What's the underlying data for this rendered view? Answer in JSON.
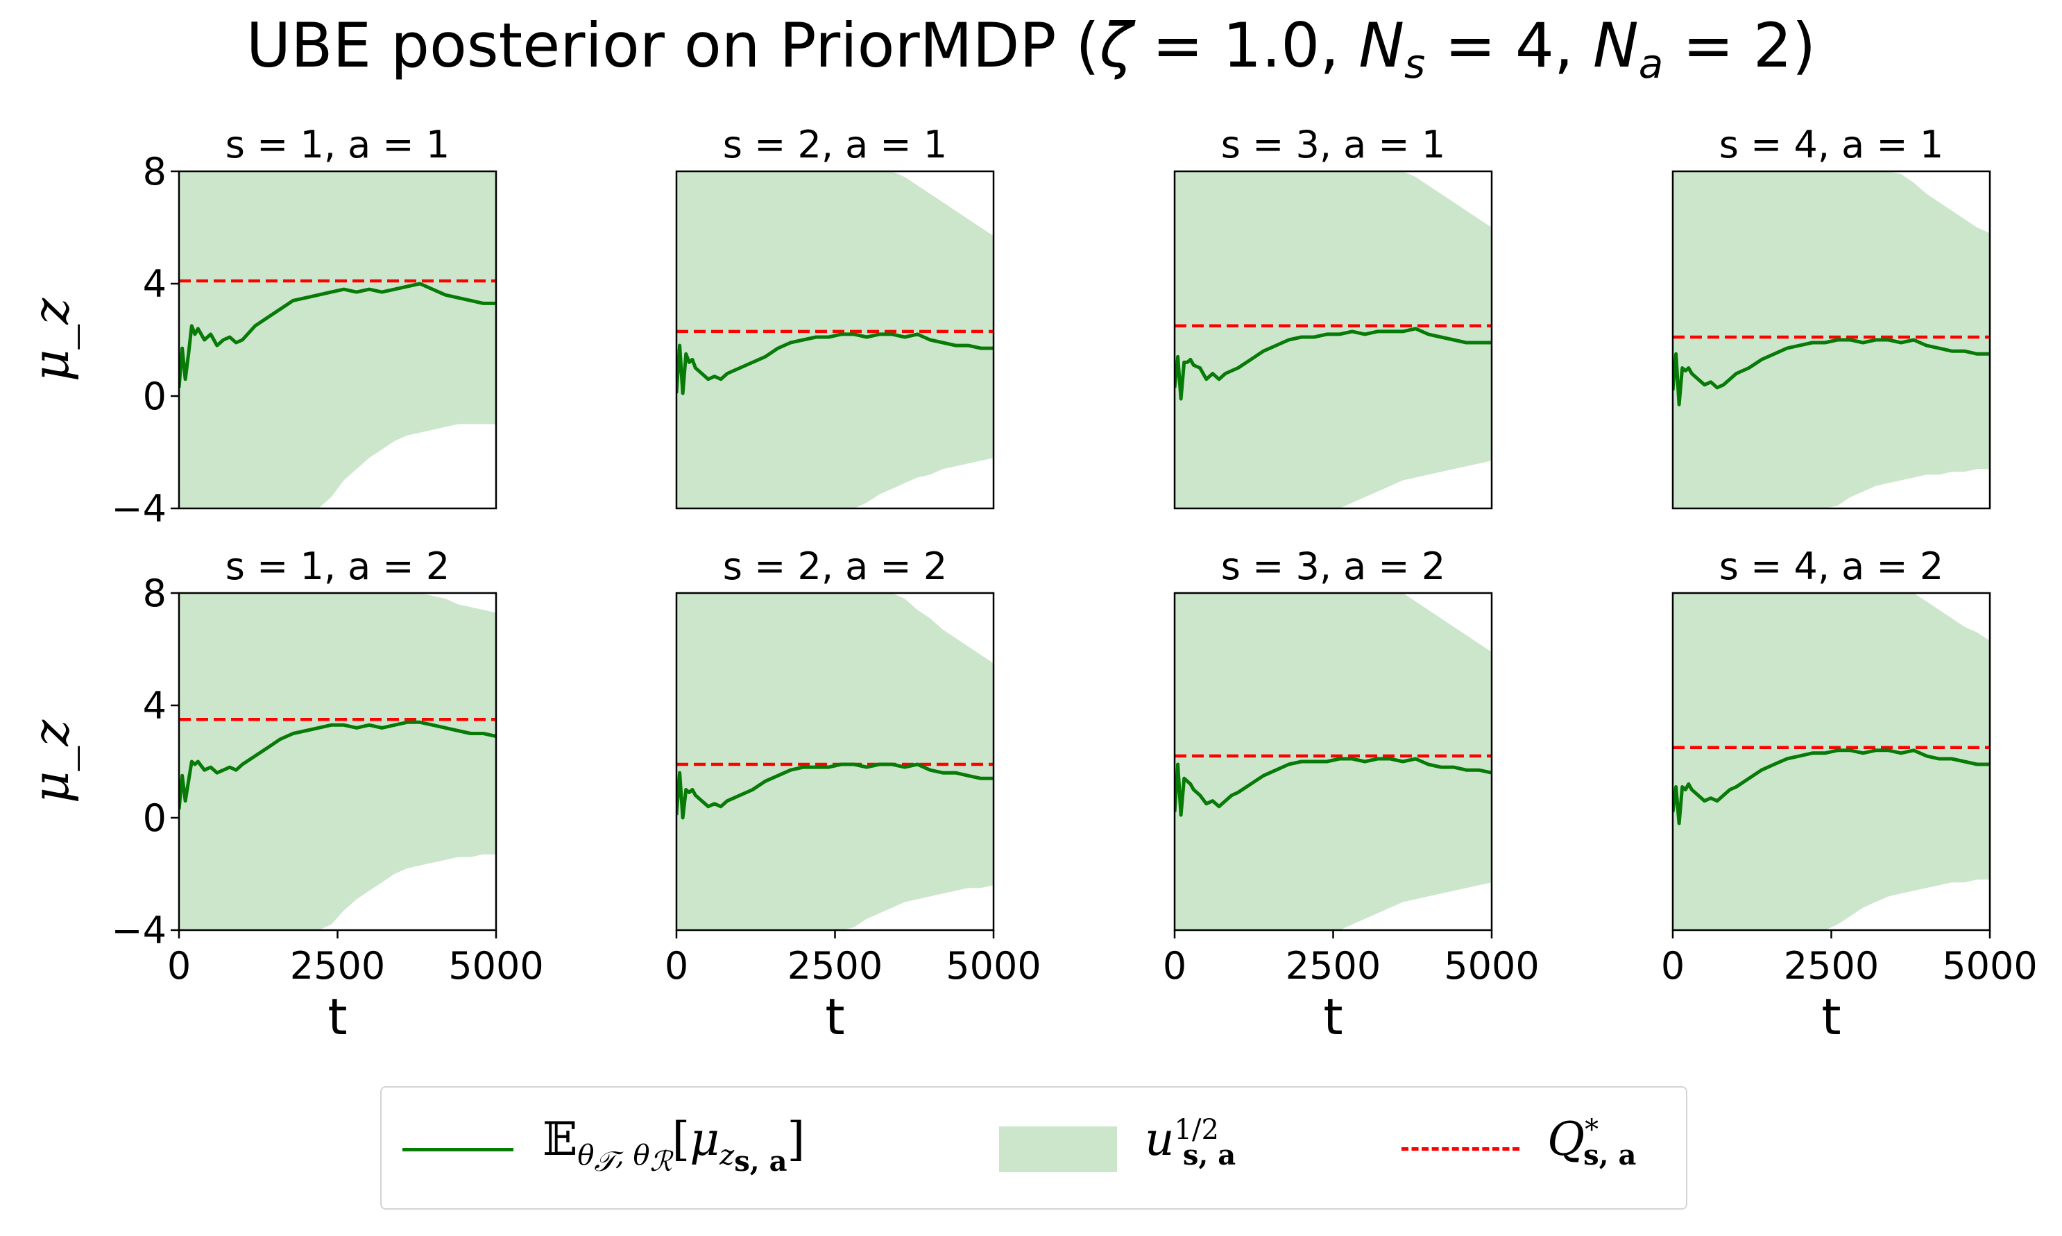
{
  "chart_data": {
    "type": "line",
    "title": "UBE posterior on PriorMDP (ζ = 1.0, N_s = 4, N_a = 2)",
    "ylabel": "μ_z",
    "xlabel": "t",
    "xlim": [
      0,
      5000
    ],
    "ylim": [
      -4,
      8
    ],
    "xticks": [
      "0",
      "2500",
      "5000"
    ],
    "yticks": [
      "−4",
      "0",
      "4",
      "8"
    ],
    "grid": false,
    "legend": {
      "placement": "bottom-center",
      "entries": [
        {
          "label": "𝔼_{θ_𝒯, θ_ℛ}[μ_{z_{s,a}}]",
          "color": "#077a07",
          "style": "line"
        },
        {
          "label": "u_{s,a}^{1/2}",
          "color": "#cce6cc",
          "style": "fill"
        },
        {
          "label": "Q*_{s,a}",
          "color": "#ff0000",
          "style": "dashed"
        }
      ]
    },
    "x": [
      0,
      50,
      100,
      150,
      200,
      250,
      300,
      400,
      500,
      600,
      700,
      800,
      900,
      1000,
      1200,
      1400,
      1600,
      1800,
      2000,
      2200,
      2400,
      2600,
      2800,
      3000,
      3200,
      3400,
      3600,
      3800,
      4000,
      4200,
      4400,
      4600,
      4800,
      5000
    ],
    "panels": [
      {
        "title": "s = 1, a = 1",
        "q_star": 4.1,
        "mean": [
          0.3,
          1.7,
          0.6,
          1.5,
          2.5,
          2.2,
          2.4,
          2.0,
          2.2,
          1.8,
          2.0,
          2.1,
          1.9,
          2.0,
          2.5,
          2.8,
          3.1,
          3.4,
          3.5,
          3.6,
          3.7,
          3.8,
          3.7,
          3.8,
          3.7,
          3.8,
          3.9,
          4.0,
          3.8,
          3.6,
          3.5,
          3.4,
          3.3,
          3.3
        ],
        "upper": [
          8,
          8,
          8,
          8,
          8,
          8,
          8,
          8,
          8,
          8,
          8,
          8,
          8,
          8,
          8,
          8,
          8,
          8,
          8,
          8,
          8,
          8,
          8,
          8,
          8,
          8,
          8,
          8,
          8,
          8,
          8,
          8,
          8,
          8
        ],
        "lower": [
          -4,
          -4,
          -4,
          -4,
          -4,
          -4,
          -4,
          -4,
          -4,
          -4,
          -4,
          -4,
          -4,
          -4,
          -4,
          -4,
          -4,
          -4,
          -4,
          -4,
          -3.6,
          -3.0,
          -2.6,
          -2.2,
          -1.9,
          -1.6,
          -1.4,
          -1.3,
          -1.2,
          -1.1,
          -1.0,
          -1.0,
          -1.0,
          -1.0
        ]
      },
      {
        "title": "s = 2, a = 1",
        "q_star": 2.3,
        "mean": [
          0.1,
          1.8,
          0.1,
          1.5,
          1.2,
          1.3,
          1.0,
          0.8,
          0.6,
          0.7,
          0.6,
          0.8,
          0.9,
          1.0,
          1.2,
          1.4,
          1.7,
          1.9,
          2.0,
          2.1,
          2.1,
          2.2,
          2.2,
          2.1,
          2.2,
          2.2,
          2.1,
          2.2,
          2.0,
          1.9,
          1.8,
          1.8,
          1.7,
          1.7
        ],
        "upper": [
          8,
          8,
          8,
          8,
          8,
          8,
          8,
          8,
          8,
          8,
          8,
          8,
          8,
          8,
          8,
          8,
          8,
          8,
          8,
          8,
          8,
          8,
          8,
          8,
          8,
          8,
          7.8,
          7.5,
          7.2,
          6.9,
          6.6,
          6.3,
          6.0,
          5.7
        ],
        "lower": [
          -4,
          -4,
          -4,
          -4,
          -4,
          -4,
          -4,
          -4,
          -4,
          -4,
          -4,
          -4,
          -4,
          -4,
          -4,
          -4,
          -4,
          -4,
          -4,
          -4,
          -4,
          -4,
          -4,
          -3.8,
          -3.5,
          -3.3,
          -3.1,
          -2.9,
          -2.8,
          -2.6,
          -2.5,
          -2.4,
          -2.3,
          -2.2
        ]
      },
      {
        "title": "s = 3, a = 1",
        "q_star": 2.5,
        "mean": [
          0.3,
          1.4,
          -0.1,
          1.2,
          1.2,
          1.3,
          1.1,
          1.0,
          0.6,
          0.8,
          0.6,
          0.8,
          0.9,
          1.0,
          1.3,
          1.6,
          1.8,
          2.0,
          2.1,
          2.1,
          2.2,
          2.2,
          2.3,
          2.2,
          2.3,
          2.3,
          2.3,
          2.4,
          2.2,
          2.1,
          2.0,
          1.9,
          1.9,
          1.9
        ],
        "upper": [
          8,
          8,
          8,
          8,
          8,
          8,
          8,
          8,
          8,
          8,
          8,
          8,
          8,
          8,
          8,
          8,
          8,
          8,
          8,
          8,
          8,
          8,
          8,
          8,
          8,
          8,
          8,
          7.8,
          7.5,
          7.2,
          6.9,
          6.6,
          6.3,
          6.0
        ],
        "lower": [
          -4,
          -4,
          -4,
          -4,
          -4,
          -4,
          -4,
          -4,
          -4,
          -4,
          -4,
          -4,
          -4,
          -4,
          -4,
          -4,
          -4,
          -4,
          -4,
          -4,
          -4,
          -4,
          -3.8,
          -3.6,
          -3.4,
          -3.2,
          -3.0,
          -2.9,
          -2.8,
          -2.7,
          -2.6,
          -2.5,
          -2.4,
          -2.3
        ]
      },
      {
        "title": "s = 4, a = 1",
        "q_star": 2.1,
        "mean": [
          0.2,
          1.5,
          -0.3,
          1.0,
          0.9,
          1.0,
          0.8,
          0.6,
          0.4,
          0.5,
          0.3,
          0.4,
          0.6,
          0.8,
          1.0,
          1.3,
          1.5,
          1.7,
          1.8,
          1.9,
          1.9,
          2.0,
          2.0,
          1.9,
          2.0,
          2.0,
          1.9,
          2.0,
          1.8,
          1.7,
          1.6,
          1.6,
          1.5,
          1.5
        ],
        "upper": [
          8,
          8,
          8,
          8,
          8,
          8,
          8,
          8,
          8,
          8,
          8,
          8,
          8,
          8,
          8,
          8,
          8,
          8,
          8,
          8,
          8,
          8,
          8,
          8,
          8,
          8,
          7.9,
          7.6,
          7.2,
          6.9,
          6.6,
          6.3,
          6.0,
          5.8
        ],
        "lower": [
          -4,
          -4,
          -4,
          -4,
          -4,
          -4,
          -4,
          -4,
          -4,
          -4,
          -4,
          -4,
          -4,
          -4,
          -4,
          -4,
          -4,
          -4,
          -4,
          -4,
          -4,
          -3.9,
          -3.6,
          -3.4,
          -3.2,
          -3.1,
          -3.0,
          -2.9,
          -2.8,
          -2.8,
          -2.7,
          -2.7,
          -2.6,
          -2.6
        ]
      },
      {
        "title": "s = 1, a = 2",
        "q_star": 3.5,
        "mean": [
          0.3,
          1.5,
          0.6,
          1.3,
          2.0,
          1.9,
          2.0,
          1.7,
          1.8,
          1.6,
          1.7,
          1.8,
          1.7,
          1.9,
          2.2,
          2.5,
          2.8,
          3.0,
          3.1,
          3.2,
          3.3,
          3.3,
          3.2,
          3.3,
          3.2,
          3.3,
          3.4,
          3.4,
          3.3,
          3.2,
          3.1,
          3.0,
          3.0,
          2.9
        ],
        "upper": [
          8,
          8,
          8,
          8,
          8,
          8,
          8,
          8,
          8,
          8,
          8,
          8,
          8,
          8,
          8,
          8,
          8,
          8,
          8,
          8,
          8,
          8,
          8,
          8,
          8,
          8,
          8,
          8,
          7.9,
          7.8,
          7.6,
          7.5,
          7.4,
          7.3
        ],
        "lower": [
          -4,
          -4,
          -4,
          -4,
          -4,
          -4,
          -4,
          -4,
          -4,
          -4,
          -4,
          -4,
          -4,
          -4,
          -4,
          -4,
          -4,
          -4,
          -4,
          -4,
          -3.8,
          -3.3,
          -2.9,
          -2.6,
          -2.3,
          -2.0,
          -1.8,
          -1.7,
          -1.6,
          -1.5,
          -1.4,
          -1.4,
          -1.3,
          -1.3
        ]
      },
      {
        "title": "s = 2, a = 2",
        "q_star": 1.9,
        "mean": [
          0.1,
          1.6,
          0.0,
          1.0,
          0.9,
          1.0,
          0.8,
          0.6,
          0.4,
          0.5,
          0.4,
          0.6,
          0.7,
          0.8,
          1.0,
          1.3,
          1.5,
          1.7,
          1.8,
          1.8,
          1.8,
          1.9,
          1.9,
          1.8,
          1.9,
          1.9,
          1.8,
          1.9,
          1.7,
          1.6,
          1.6,
          1.5,
          1.4,
          1.4
        ],
        "upper": [
          8,
          8,
          8,
          8,
          8,
          8,
          8,
          8,
          8,
          8,
          8,
          8,
          8,
          8,
          8,
          8,
          8,
          8,
          8,
          8,
          8,
          8,
          8,
          8,
          8,
          8,
          7.8,
          7.4,
          7.1,
          6.7,
          6.4,
          6.1,
          5.8,
          5.5
        ],
        "lower": [
          -4,
          -4,
          -4,
          -4,
          -4,
          -4,
          -4,
          -4,
          -4,
          -4,
          -4,
          -4,
          -4,
          -4,
          -4,
          -4,
          -4,
          -4,
          -4,
          -4,
          -4,
          -4,
          -3.9,
          -3.6,
          -3.4,
          -3.2,
          -3.0,
          -2.9,
          -2.8,
          -2.7,
          -2.6,
          -2.5,
          -2.5,
          -2.4
        ]
      },
      {
        "title": "s = 3, a = 2",
        "q_star": 2.2,
        "mean": [
          0.2,
          1.9,
          0.1,
          1.4,
          1.3,
          1.2,
          1.0,
          0.8,
          0.5,
          0.6,
          0.4,
          0.6,
          0.8,
          0.9,
          1.2,
          1.5,
          1.7,
          1.9,
          2.0,
          2.0,
          2.0,
          2.1,
          2.1,
          2.0,
          2.1,
          2.1,
          2.0,
          2.1,
          1.9,
          1.8,
          1.8,
          1.7,
          1.7,
          1.6
        ],
        "upper": [
          8,
          8,
          8,
          8,
          8,
          8,
          8,
          8,
          8,
          8,
          8,
          8,
          8,
          8,
          8,
          8,
          8,
          8,
          8,
          8,
          8,
          8,
          8,
          8,
          8,
          8,
          8,
          7.7,
          7.4,
          7.1,
          6.8,
          6.5,
          6.2,
          5.9
        ],
        "lower": [
          -4,
          -4,
          -4,
          -4,
          -4,
          -4,
          -4,
          -4,
          -4,
          -4,
          -4,
          -4,
          -4,
          -4,
          -4,
          -4,
          -4,
          -4,
          -4,
          -4,
          -4,
          -4,
          -3.8,
          -3.6,
          -3.4,
          -3.2,
          -3.0,
          -2.9,
          -2.8,
          -2.7,
          -2.6,
          -2.5,
          -2.4,
          -2.3
        ]
      },
      {
        "title": "s = 4, a = 2",
        "q_star": 2.5,
        "mean": [
          0.2,
          1.1,
          -0.2,
          1.1,
          1.0,
          1.2,
          1.0,
          0.8,
          0.6,
          0.7,
          0.6,
          0.8,
          1.0,
          1.1,
          1.4,
          1.7,
          1.9,
          2.1,
          2.2,
          2.3,
          2.3,
          2.4,
          2.4,
          2.3,
          2.4,
          2.4,
          2.3,
          2.4,
          2.2,
          2.1,
          2.1,
          2.0,
          1.9,
          1.9
        ],
        "upper": [
          8,
          8,
          8,
          8,
          8,
          8,
          8,
          8,
          8,
          8,
          8,
          8,
          8,
          8,
          8,
          8,
          8,
          8,
          8,
          8,
          8,
          8,
          8,
          8,
          8,
          8,
          8,
          8,
          7.7,
          7.4,
          7.1,
          6.8,
          6.6,
          6.3
        ],
        "lower": [
          -4,
          -4,
          -4,
          -4,
          -4,
          -4,
          -4,
          -4,
          -4,
          -4,
          -4,
          -4,
          -4,
          -4,
          -4,
          -4,
          -4,
          -4,
          -4,
          -4,
          -4,
          -3.8,
          -3.5,
          -3.2,
          -3.0,
          -2.8,
          -2.7,
          -2.6,
          -2.5,
          -2.4,
          -2.3,
          -2.3,
          -2.2,
          -2.2
        ]
      }
    ]
  }
}
